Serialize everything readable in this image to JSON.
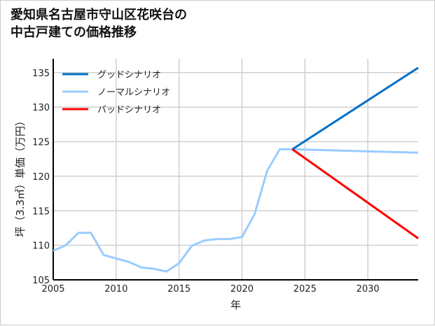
{
  "chart_data": {
    "type": "line",
    "title_lines": [
      "愛知県名古屋市守山区花咲台の",
      "中古戸建ての価格推移"
    ],
    "xlabel": "年",
    "ylabel": "坪（3.3㎡）単価（万円）",
    "xlim": [
      2005,
      2034
    ],
    "ylim": [
      105,
      137
    ],
    "xticks": [
      2005,
      2010,
      2015,
      2020,
      2025,
      2030
    ],
    "yticks": [
      105,
      110,
      115,
      120,
      125,
      130,
      135
    ],
    "grid": true,
    "legend_position": "top-left",
    "series": [
      {
        "name": "グッドシナリオ",
        "color": "#0070C8",
        "x": [
          2024,
          2034
        ],
        "y": [
          123.9,
          135.7
        ]
      },
      {
        "name": "ノーマルシナリオ",
        "color": "#99CCFF",
        "x": [
          2005,
          2006,
          2007,
          2008,
          2009,
          2010,
          2011,
          2012,
          2013,
          2014,
          2015,
          2016,
          2017,
          2018,
          2019,
          2020,
          2021,
          2022,
          2023,
          2024,
          2034
        ],
        "y": [
          109.2,
          110.0,
          111.8,
          111.8,
          108.6,
          108.1,
          107.6,
          106.8,
          106.6,
          106.2,
          107.4,
          109.9,
          110.7,
          110.9,
          110.9,
          111.2,
          114.5,
          120.8,
          123.9,
          123.9,
          123.4
        ]
      },
      {
        "name": "バッドシナリオ",
        "color": "#FF0000",
        "x": [
          2024,
          2034
        ],
        "y": [
          123.9,
          111.0
        ]
      }
    ]
  }
}
